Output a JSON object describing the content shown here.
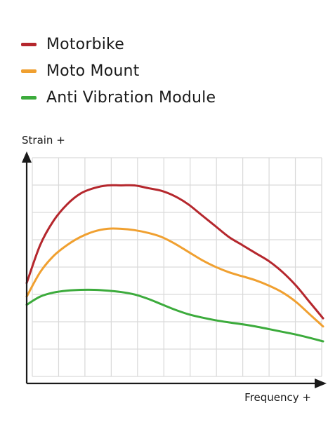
{
  "chart_data": {
    "type": "line",
    "title": "",
    "xlabel": "Frequency +",
    "ylabel": "Strain +",
    "xlim": [
      0,
      11
    ],
    "ylim": [
      0,
      8.5
    ],
    "grid": true,
    "legend_position": "top-left",
    "x": [
      0,
      0.5,
      1,
      1.5,
      2,
      2.5,
      3,
      3.5,
      4,
      4.5,
      5,
      5.5,
      6,
      6.5,
      7,
      7.5,
      8,
      8.5,
      9,
      9.5,
      10,
      10.5,
      11
    ],
    "series": [
      {
        "name": "Motorbike",
        "color": "#b5272d",
        "values": [
          3.7,
          5.1,
          6.0,
          6.6,
          7.0,
          7.2,
          7.3,
          7.3,
          7.3,
          7.2,
          7.1,
          6.9,
          6.6,
          6.2,
          5.8,
          5.4,
          5.1,
          4.8,
          4.5,
          4.1,
          3.6,
          3.0,
          2.4
        ]
      },
      {
        "name": "Moto Mount",
        "color": "#f0a030",
        "values": [
          3.2,
          4.1,
          4.7,
          5.1,
          5.4,
          5.6,
          5.7,
          5.7,
          5.65,
          5.55,
          5.4,
          5.15,
          4.85,
          4.55,
          4.3,
          4.1,
          3.95,
          3.8,
          3.6,
          3.35,
          3.0,
          2.55,
          2.1
        ]
      },
      {
        "name": "Anti Vibration Module",
        "color": "#3cab3c",
        "values": [
          2.9,
          3.2,
          3.35,
          3.42,
          3.45,
          3.45,
          3.42,
          3.37,
          3.28,
          3.12,
          2.92,
          2.72,
          2.55,
          2.43,
          2.33,
          2.25,
          2.18,
          2.1,
          2.0,
          1.9,
          1.8,
          1.68,
          1.55
        ]
      }
    ]
  }
}
